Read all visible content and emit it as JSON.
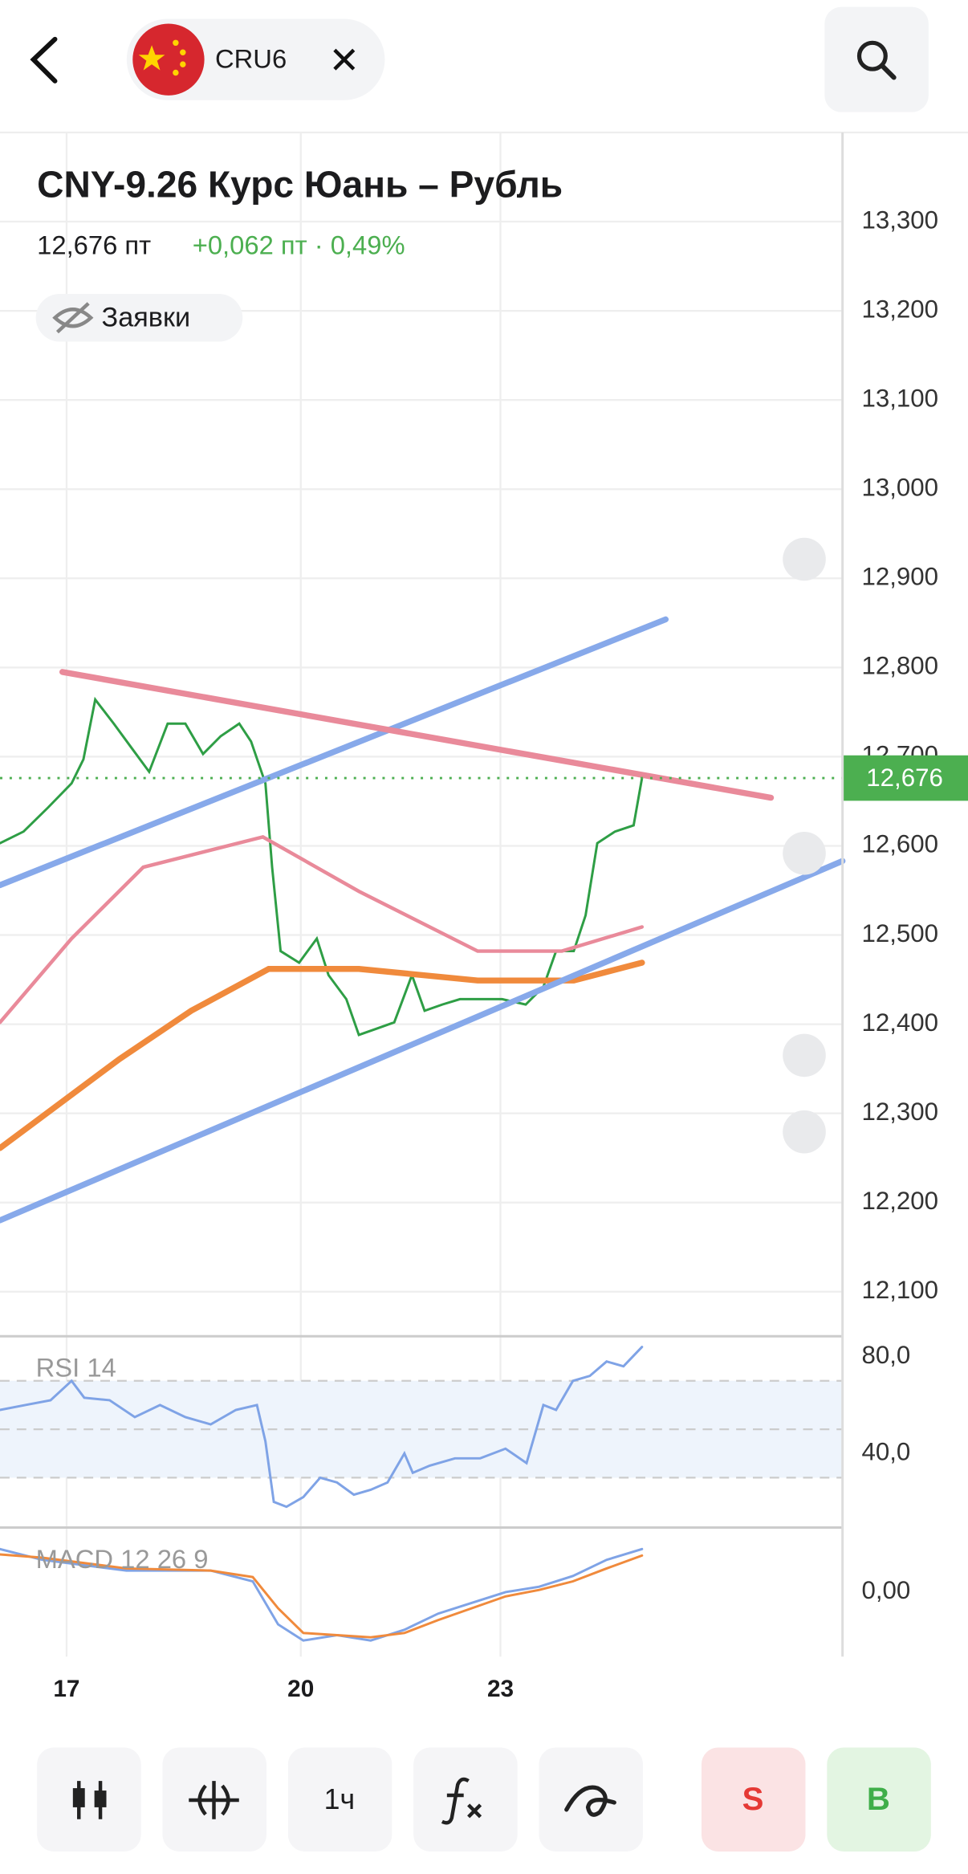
{
  "header": {
    "ticker": "CRU6"
  },
  "instrument": {
    "title": "CNY-9.26 Курс Юань – Рубль",
    "price": "12,676 пт",
    "change": "+0,062 пт · 0,49%",
    "orders": "Заявки"
  },
  "chart_data": [
    {
      "type": "line",
      "xlim": [
        0,
        100
      ],
      "ylim": [
        12050,
        13400
      ],
      "grid": true,
      "xticks": [
        {
          "value": 7.9,
          "label": "17"
        },
        {
          "value": 35.7,
          "label": "20"
        },
        {
          "value": 59.4,
          "label": "23"
        }
      ],
      "yticks": [
        {
          "value": 12100,
          "label": "12,100"
        },
        {
          "value": 12200,
          "label": "12,200"
        },
        {
          "value": 12300,
          "label": "12,300"
        },
        {
          "value": 12400,
          "label": "12,400"
        },
        {
          "value": 12500,
          "label": "12,500"
        },
        {
          "value": 12600,
          "label": "12,600"
        },
        {
          "value": 12700,
          "label": "12,700"
        },
        {
          "value": 12800,
          "label": "12,800"
        },
        {
          "value": 12900,
          "label": "12,900"
        },
        {
          "value": 13000,
          "label": "13,000"
        },
        {
          "value": 13100,
          "label": "13,100"
        },
        {
          "value": 13200,
          "label": "13,200"
        },
        {
          "value": 13300,
          "label": "13,300"
        }
      ],
      "last_price": {
        "value": 12676,
        "label": "12,676",
        "color": "#4caf50"
      },
      "series": [
        {
          "color": "#2e9e45",
          "x": [
            0,
            2.8,
            5.7,
            8.5,
            9.9,
            11.3,
            13.5,
            15.6,
            17.7,
            19.9,
            22,
            24.1,
            26.2,
            28.4,
            29.8,
            31.5,
            32.3,
            33.3,
            35.5,
            37.6,
            39,
            41.1,
            42.6,
            44.7,
            46.8,
            48.9,
            50.4,
            52.5,
            54.6,
            56.7,
            59.6,
            62.4,
            64.5,
            66,
            68.1,
            69.5,
            70.9,
            73,
            75.2,
            76.2
          ],
          "values": [
            12603,
            12616,
            12643,
            12670,
            12697,
            12764,
            12737,
            12710,
            12683,
            12737,
            12737,
            12703,
            12723,
            12737,
            12717,
            12670,
            12576,
            12482,
            12469,
            12496,
            12455,
            12428,
            12388,
            12395,
            12402,
            12455,
            12415,
            12422,
            12428,
            12428,
            12428,
            12422,
            12442,
            12482,
            12482,
            12522,
            12603,
            12616,
            12623,
            12676
          ]
        },
        {
          "color": "#f08a3c",
          "x": [
            0,
            14.2,
            22.7,
            31.9,
            42.6,
            56.7,
            68.1,
            76.2
          ],
          "values": [
            12261,
            12361,
            12415,
            12462,
            12462,
            12449,
            12449,
            12469
          ]
        },
        {
          "color": "#e98a9a",
          "x": [
            0,
            8.5,
            17,
            31.2,
            42.6,
            56.7,
            66.7,
            76.2
          ],
          "values": [
            12402,
            12496,
            12576,
            12610,
            12549,
            12482,
            12482,
            12509
          ]
        },
        {
          "color": "#87a9ea",
          "x": [
            0,
            79
          ],
          "values": [
            12556,
            12854
          ]
        },
        {
          "color": "#87a9ea",
          "x": [
            0,
            100
          ],
          "values": [
            12180,
            12583
          ]
        },
        {
          "color": "#e98a9a",
          "x": [
            7.4,
            91.5
          ],
          "values": [
            12795,
            12654
          ]
        }
      ]
    },
    {
      "type": "line",
      "title": "RSI 14",
      "ylim": [
        9.4,
        88.4
      ],
      "band": [
        30,
        70
      ],
      "levels": [
        30,
        50,
        70
      ],
      "yticks": [
        {
          "value": 80,
          "label": "80,0"
        },
        {
          "value": 40,
          "label": "40,0"
        }
      ],
      "series": [
        {
          "color": "#7fa3e6",
          "x": [
            0,
            3,
            6,
            8.5,
            10,
            13,
            16,
            19,
            22,
            25,
            28,
            30.5,
            31.5,
            32.5,
            34,
            36,
            38,
            40,
            42,
            44,
            46,
            48,
            49,
            51,
            54,
            57,
            60,
            62.5,
            64.5,
            66,
            68,
            70,
            72,
            74,
            76.2
          ],
          "values": [
            58,
            60,
            62,
            70,
            63,
            62,
            55,
            60,
            55,
            52,
            58,
            60,
            45,
            20,
            18,
            22,
            30,
            28,
            23,
            25,
            28,
            40,
            32,
            35,
            38,
            38,
            42,
            36,
            60,
            58,
            70,
            72,
            78,
            76,
            84
          ]
        }
      ]
    },
    {
      "type": "line",
      "title": "MACD 12 26 9",
      "ylim": [
        -0.06,
        0.06
      ],
      "yticks": [
        {
          "value": 0,
          "label": "0,00"
        }
      ],
      "series": [
        {
          "color": "#7fa3e6",
          "x": [
            0,
            5,
            15,
            25,
            30,
            33,
            36,
            40,
            44,
            48,
            52,
            56,
            60,
            64,
            68,
            72,
            76.2
          ],
          "values": [
            0.04,
            0.03,
            0.02,
            0.02,
            0.01,
            -0.03,
            -0.045,
            -0.04,
            -0.045,
            -0.035,
            -0.02,
            -0.01,
            0,
            0.005,
            0.015,
            0.03,
            0.04
          ]
        },
        {
          "color": "#f08a3c",
          "x": [
            0,
            5,
            15,
            25,
            30,
            33,
            36,
            40,
            44,
            48,
            52,
            56,
            60,
            64,
            68,
            72,
            76.2
          ],
          "values": [
            0.035,
            0.032,
            0.022,
            0.02,
            0.014,
            -0.015,
            -0.038,
            -0.04,
            -0.042,
            -0.038,
            -0.026,
            -0.015,
            -0.004,
            0.002,
            0.01,
            0.022,
            0.034
          ]
        }
      ]
    }
  ],
  "toolbar": {
    "interval": "1ч",
    "sell": "S",
    "buy": "B"
  }
}
